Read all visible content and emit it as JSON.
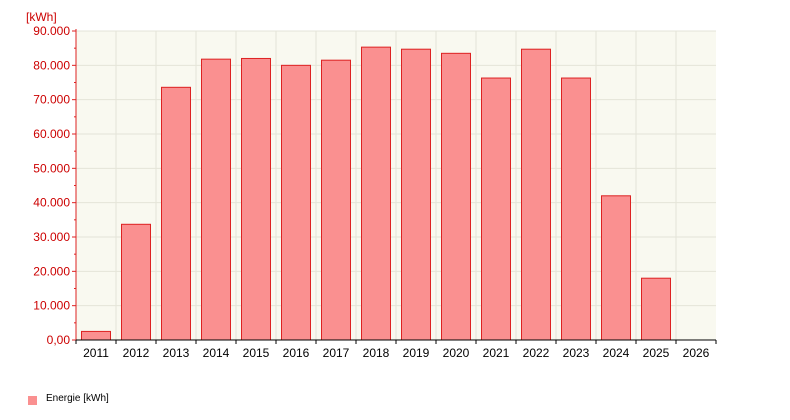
{
  "chart_data": {
    "type": "bar",
    "unit_label": "[kWh]",
    "categories": [
      "2011",
      "2012",
      "2013",
      "2014",
      "2015",
      "2016",
      "2017",
      "2018",
      "2019",
      "2020",
      "2021",
      "2022",
      "2023",
      "2024",
      "2025",
      "2026"
    ],
    "series": [
      {
        "name": "Energie [kWh]",
        "values": [
          2500,
          33700,
          73600,
          81800,
          82000,
          80000,
          81500,
          85300,
          84700,
          83500,
          76300,
          84700,
          76300,
          42000,
          18000,
          null
        ]
      }
    ],
    "ylim": [
      0,
      90000
    ],
    "yticks": [
      0,
      10000,
      20000,
      30000,
      40000,
      50000,
      60000,
      70000,
      80000,
      90000
    ],
    "ytick_labels": [
      "0,00",
      "10.000",
      "20.000",
      "30.000",
      "40.000",
      "50.000",
      "60.000",
      "70.000",
      "80.000",
      "90.000"
    ],
    "grid": true,
    "legend_position": "bottom-left",
    "colors": {
      "bar_fill": "#fa9090",
      "bar_stroke": "#dd2222",
      "plot_background": "#f9f9f0",
      "grid": "#e4e4d8",
      "y_axis": "#dd2222",
      "y_labels": "#cc0000",
      "x_axis": "#000000"
    }
  }
}
